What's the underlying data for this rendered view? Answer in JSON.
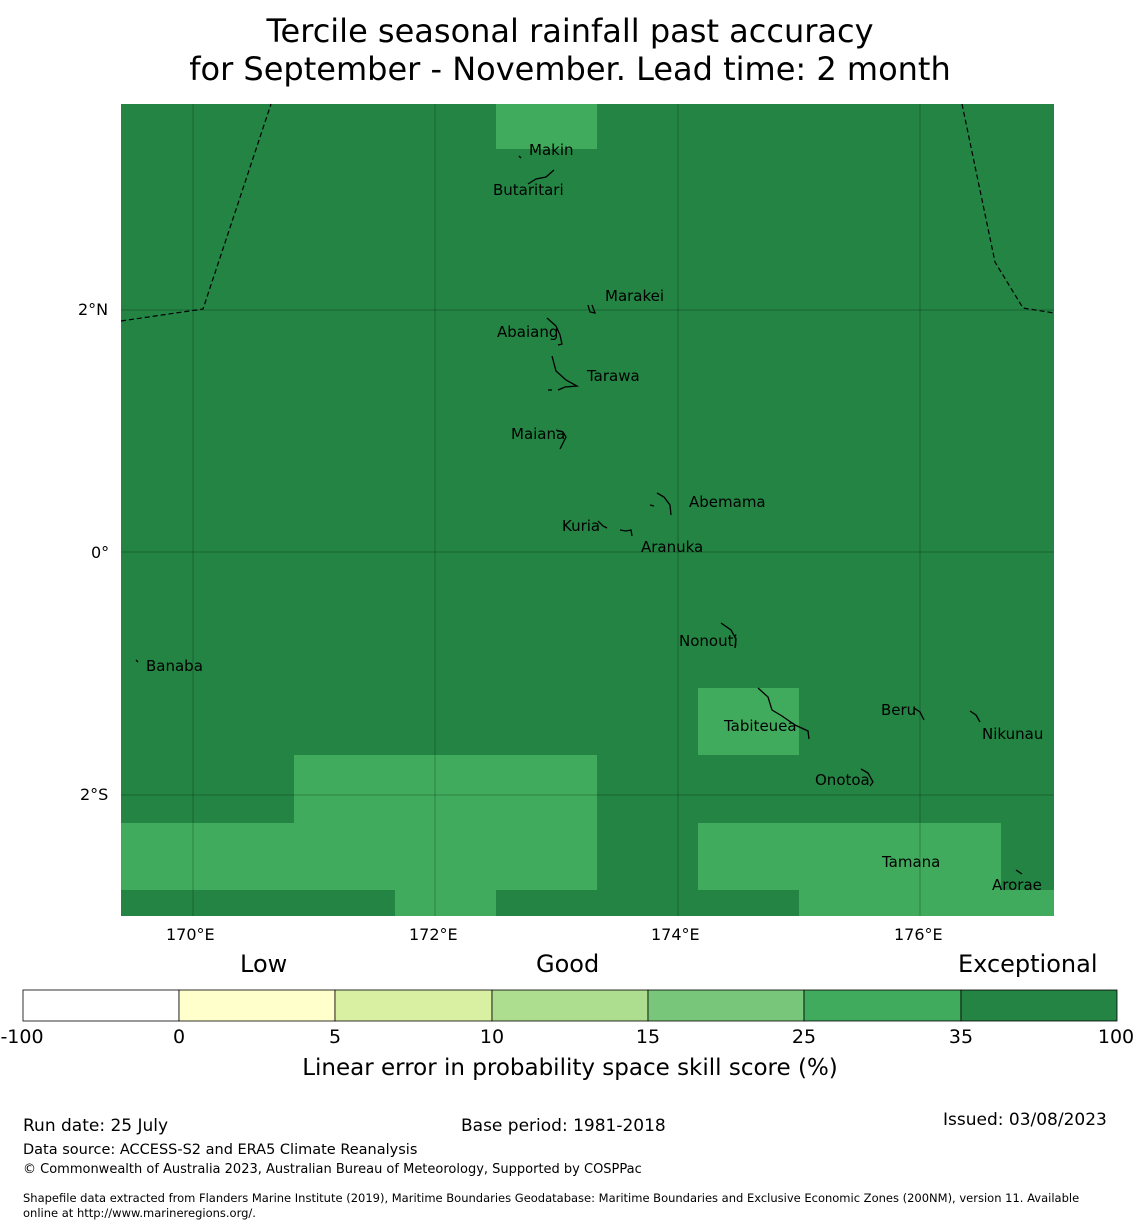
{
  "title": {
    "line1": "Tercile seasonal rainfall past accuracy",
    "line2": "for September - November. Lead time: 2 month"
  },
  "map": {
    "lon_ticks": [
      "170°E",
      "172°E",
      "174°E",
      "176°E"
    ],
    "lat_ticks": [
      "2°N",
      "0°",
      "2°S"
    ],
    "colors": {
      "good_35": "#41ab5d",
      "exceptional": "#238443"
    },
    "islands": [
      "Makin",
      "Butaritari",
      "Marakei",
      "Abaiang",
      "Tarawa",
      "Maiana",
      "Abemama",
      "Kuria",
      "Aranuka",
      "Nonouti",
      "Banaba",
      "Tabiteuea",
      "Beru",
      "Nikunau",
      "Onotoa",
      "Tamana",
      "Arorae"
    ]
  },
  "colorbar": {
    "categories": [
      "Low",
      "Good",
      "Exceptional"
    ],
    "ticks": [
      "-100",
      "0",
      "5",
      "10",
      "15",
      "25",
      "35",
      "100"
    ],
    "colors": [
      "#ffffff",
      "#ffffcc",
      "#d9f0a3",
      "#addd8e",
      "#78c679",
      "#41ab5d",
      "#238443"
    ],
    "label": "Linear error in probability space skill score (%)"
  },
  "footer": {
    "run_date": "Run date: 25 July",
    "base_period": "Base period: 1981-2018",
    "issued": "Issued: 03/08/2023",
    "data_source": "Data source: ACCESS-S2 and ERA5 Climate Reanalysis",
    "copyright": "© Commonwealth of Australia 2023, Australian Bureau of Meteorology, Supported by COSPPac",
    "shapefile_line1": "Shapefile data extracted from Flanders Marine Institute (2019), Maritime Boundaries Geodatabase: Maritime Boundaries and Exclusive Economic Zones (200NM), version 11. Available",
    "shapefile_line2": "online at http://www.marineregions.org/."
  }
}
